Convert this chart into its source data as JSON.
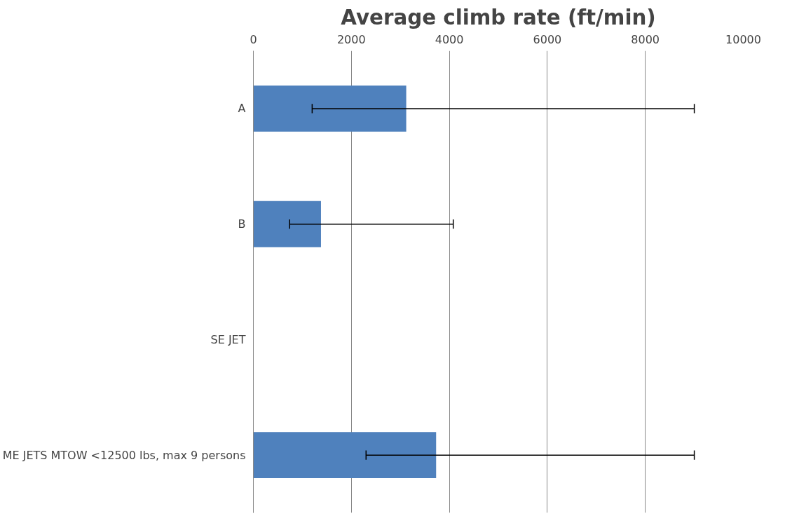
{
  "chart_data": {
    "type": "bar",
    "orientation": "horizontal",
    "title": "Average climb rate (ft/min)",
    "categories": [
      "A",
      "B",
      "SE JET",
      "ME JETS MTOW <12500 lbs, max 9 persons"
    ],
    "values": [
      3120,
      1380,
      null,
      3730
    ],
    "errors": [
      [
        1200,
        9000
      ],
      [
        740,
        4080
      ],
      null,
      [
        2300,
        9000
      ]
    ],
    "color": "#4f81bd",
    "xlim": [
      0,
      10000
    ],
    "xticks": [
      0,
      2000,
      4000,
      6000,
      8000,
      10000
    ],
    "grid": "x"
  }
}
